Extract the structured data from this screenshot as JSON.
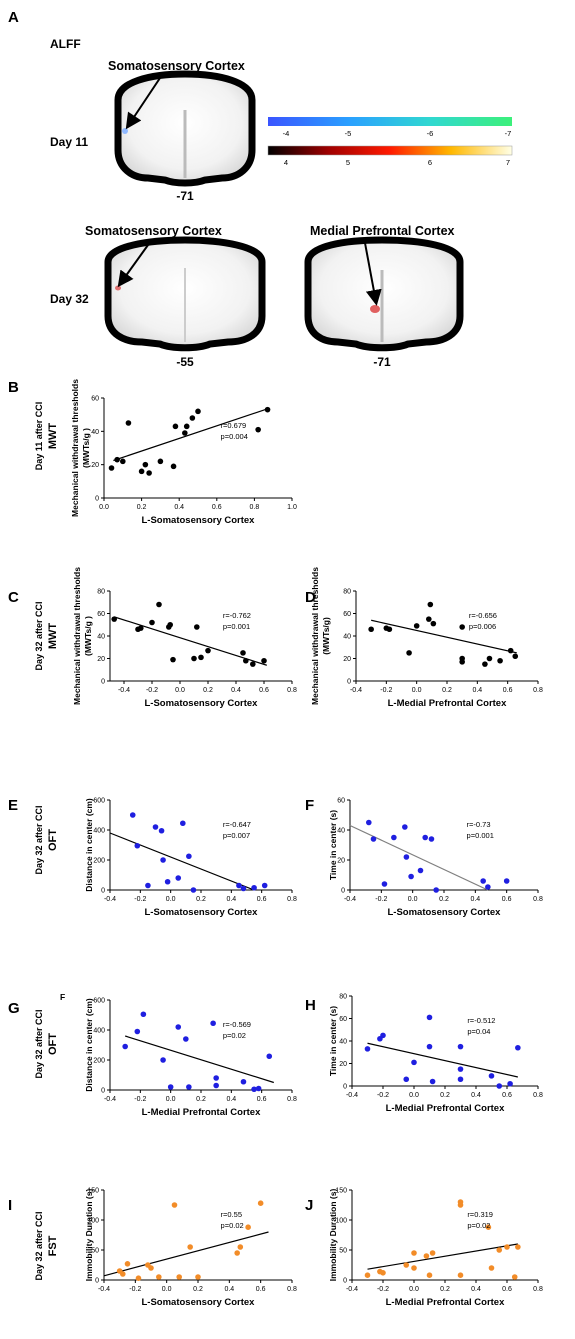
{
  "panel_a": {
    "letter": "A",
    "title": "ALFF",
    "rows": [
      {
        "day": "Day 11",
        "brains": [
          {
            "label": "Somatosensory Cortex",
            "slice": "-71",
            "spot": "blue"
          }
        ]
      },
      {
        "day": "Day 32",
        "brains": [
          {
            "label": "Somatosensory Cortex",
            "slice": "-55",
            "spot": "red"
          },
          {
            "label": "Medial Prefrontal Cortex",
            "slice": "-71",
            "spot": "red"
          }
        ]
      }
    ],
    "colorbar_neg": {
      "ticks": [
        "-4",
        "-5",
        "-6",
        "-7"
      ],
      "colors": [
        "#3a55ff",
        "#2aa0ff",
        "#30d8d0",
        "#3cf07a"
      ]
    },
    "colorbar_pos": {
      "ticks": [
        "4",
        "5",
        "6",
        "7"
      ],
      "colors": [
        "#000000",
        "#a00000",
        "#ff1a00",
        "#ffb800",
        "#ffffe6"
      ]
    }
  },
  "row_labels": [
    {
      "day": "Day 11 after CCI",
      "test": "MWT"
    },
    {
      "day": "Day 32 after CCI",
      "test": "MWT"
    },
    {
      "day": "Day 32 after CCI",
      "test": "OFT"
    },
    {
      "day": "Day 32 after CCI",
      "test": "OFT"
    },
    {
      "day": "Day 32 after CCI",
      "test": "FST"
    }
  ],
  "colors": {
    "black": "#000000",
    "blue": "#1f1fe0",
    "orange": "#f28c28",
    "gray": "#808080"
  },
  "chart_data": [
    {
      "id": "B",
      "letter": "B",
      "type": "scatter",
      "xlabel": "L-Somatosensory Cortex",
      "ylabel": "Mechanical withdrawal thresholds (MWTs/g )",
      "xlim": [
        0.0,
        1.0
      ],
      "ylim": [
        0,
        60
      ],
      "xticks": [
        0.0,
        0.2,
        0.4,
        0.6,
        0.8,
        1.0
      ],
      "yticks": [
        0,
        20,
        40,
        60
      ],
      "r": "r=0.679",
      "p": "p=0.004",
      "color": "black",
      "fit_color": "black",
      "fit": [
        [
          0.05,
          22.5
        ],
        [
          0.87,
          53.5
        ]
      ],
      "points": [
        [
          0.04,
          18
        ],
        [
          0.07,
          23
        ],
        [
          0.1,
          22
        ],
        [
          0.13,
          45
        ],
        [
          0.2,
          16
        ],
        [
          0.22,
          20
        ],
        [
          0.24,
          15
        ],
        [
          0.3,
          22
        ],
        [
          0.37,
          19
        ],
        [
          0.38,
          43
        ],
        [
          0.43,
          39
        ],
        [
          0.44,
          43
        ],
        [
          0.47,
          48
        ],
        [
          0.5,
          52
        ],
        [
          0.82,
          41
        ],
        [
          0.87,
          53
        ]
      ]
    },
    {
      "id": "C",
      "letter": "C",
      "type": "scatter",
      "xlabel": "L-Somatosensory Cortex",
      "ylabel": "Mechanical withdrawal thresholds (MWTs/g )",
      "xlim": [
        -0.5,
        0.8
      ],
      "ylim": [
        0,
        80
      ],
      "xticks": [
        -0.4,
        -0.2,
        0.0,
        0.2,
        0.4,
        0.6,
        0.8
      ],
      "yticks": [
        0,
        20,
        40,
        60,
        80
      ],
      "r": "r=-0.762",
      "p": "p=0.001",
      "color": "black",
      "fit_color": "black",
      "fit": [
        [
          -0.47,
          57
        ],
        [
          0.62,
          14
        ]
      ],
      "points": [
        [
          -0.47,
          55
        ],
        [
          -0.3,
          46
        ],
        [
          -0.28,
          47
        ],
        [
          -0.2,
          52
        ],
        [
          -0.15,
          68
        ],
        [
          -0.08,
          48
        ],
        [
          -0.07,
          50
        ],
        [
          -0.05,
          19
        ],
        [
          0.1,
          20
        ],
        [
          0.12,
          48
        ],
        [
          0.15,
          21
        ],
        [
          0.2,
          27
        ],
        [
          0.45,
          25
        ],
        [
          0.47,
          18
        ],
        [
          0.52,
          15
        ],
        [
          0.6,
          18
        ]
      ]
    },
    {
      "id": "D",
      "letter": "D",
      "type": "scatter",
      "xlabel": "L-Medial Prefrontal Cortex",
      "ylabel": "Mechanical withdrawal thresholds (MWTs/g)",
      "xlim": [
        -0.4,
        0.8
      ],
      "ylim": [
        0,
        80
      ],
      "xticks": [
        -0.4,
        -0.2,
        0.0,
        0.2,
        0.4,
        0.6,
        0.8
      ],
      "yticks": [
        0,
        20,
        40,
        60,
        80
      ],
      "r": "r=-0.656",
      "p": "p=0.006",
      "color": "black",
      "fit_color": "black",
      "fit": [
        [
          -0.3,
          54
        ],
        [
          0.66,
          25
        ]
      ],
      "points": [
        [
          -0.3,
          46
        ],
        [
          -0.2,
          47
        ],
        [
          -0.18,
          46
        ],
        [
          -0.05,
          25
        ],
        [
          0.0,
          49
        ],
        [
          0.08,
          55
        ],
        [
          0.09,
          68
        ],
        [
          0.11,
          51
        ],
        [
          0.3,
          48
        ],
        [
          0.3,
          20
        ],
        [
          0.3,
          17
        ],
        [
          0.45,
          15
        ],
        [
          0.48,
          20
        ],
        [
          0.55,
          18
        ],
        [
          0.62,
          27
        ],
        [
          0.65,
          22
        ]
      ]
    },
    {
      "id": "E",
      "letter": "E",
      "type": "scatter",
      "xlabel": "L-Somatosensory Cortex",
      "ylabel": "Distance  in center (cm)",
      "xlim": [
        -0.4,
        0.8
      ],
      "ylim": [
        0,
        600
      ],
      "xticks": [
        -0.4,
        -0.2,
        0.0,
        0.2,
        0.4,
        0.6,
        0.8
      ],
      "yticks": [
        0,
        200,
        400,
        600
      ],
      "r": "r=-0.647",
      "p": "p=0.007",
      "color": "blue",
      "fit_color": "black",
      "fit": [
        [
          -0.4,
          380
        ],
        [
          0.55,
          0
        ]
      ],
      "points": [
        [
          -0.25,
          500
        ],
        [
          -0.22,
          295
        ],
        [
          -0.15,
          30
        ],
        [
          -0.1,
          420
        ],
        [
          -0.06,
          395
        ],
        [
          -0.05,
          200
        ],
        [
          -0.02,
          55
        ],
        [
          0.05,
          80
        ],
        [
          0.08,
          445
        ],
        [
          0.12,
          225
        ],
        [
          0.15,
          0
        ],
        [
          0.45,
          30
        ],
        [
          0.48,
          10
        ],
        [
          0.55,
          15
        ],
        [
          0.62,
          30
        ]
      ]
    },
    {
      "id": "F",
      "letter": "F",
      "type": "scatter",
      "xlabel": "L-Somatosensory Cortex",
      "ylabel": "Time  in center (s)",
      "xlim": [
        -0.4,
        0.8
      ],
      "ylim": [
        0,
        60
      ],
      "xticks": [
        -0.4,
        -0.2,
        0.0,
        0.2,
        0.4,
        0.6,
        0.8
      ],
      "yticks": [
        0,
        20,
        40,
        60
      ],
      "r": "r=-0.73",
      "p": "p=0.001",
      "color": "blue",
      "fit_color": "gray",
      "fit": [
        [
          -0.4,
          43
        ],
        [
          0.48,
          0
        ]
      ],
      "points": [
        [
          -0.28,
          45
        ],
        [
          -0.25,
          34
        ],
        [
          -0.18,
          4
        ],
        [
          -0.12,
          35
        ],
        [
          -0.05,
          42
        ],
        [
          -0.04,
          22
        ],
        [
          -0.01,
          9
        ],
        [
          0.05,
          13
        ],
        [
          0.08,
          35
        ],
        [
          0.12,
          34
        ],
        [
          0.15,
          0
        ],
        [
          0.45,
          6
        ],
        [
          0.48,
          2
        ],
        [
          0.6,
          6
        ]
      ]
    },
    {
      "id": "G",
      "letter": "G",
      "sub_letter": "F",
      "type": "scatter",
      "xlabel": "L-Medial Prefrontal Cortex",
      "ylabel": "Distance  in center (cm)",
      "xlim": [
        -0.4,
        0.8
      ],
      "ylim": [
        0,
        600
      ],
      "xticks": [
        -0.4,
        -0.2,
        0.0,
        0.2,
        0.4,
        0.6,
        0.8
      ],
      "yticks": [
        0,
        200,
        400,
        600
      ],
      "r": "r=-0.569",
      "p": "p=0.02",
      "color": "blue",
      "fit_color": "black",
      "fit": [
        [
          -0.3,
          360
        ],
        [
          0.68,
          50
        ]
      ],
      "points": [
        [
          -0.3,
          290
        ],
        [
          -0.22,
          390
        ],
        [
          -0.18,
          505
        ],
        [
          -0.05,
          200
        ],
        [
          0.05,
          420
        ],
        [
          0.1,
          340
        ],
        [
          0.12,
          20
        ],
        [
          0.0,
          20
        ],
        [
          0.28,
          445
        ],
        [
          0.3,
          80
        ],
        [
          0.3,
          30
        ],
        [
          0.48,
          55
        ],
        [
          0.55,
          5
        ],
        [
          0.58,
          10
        ],
        [
          0.65,
          225
        ]
      ]
    },
    {
      "id": "H",
      "letter": "H",
      "type": "scatter",
      "xlabel": "L-Medial Prefrontal Cortex",
      "ylabel": "Time  in center (s)",
      "xlim": [
        -0.4,
        0.8
      ],
      "ylim": [
        0,
        80
      ],
      "xticks": [
        -0.4,
        -0.2,
        0.0,
        0.2,
        0.4,
        0.6,
        0.8
      ],
      "yticks": [
        0,
        20,
        40,
        60,
        80
      ],
      "r": "r=-0.512",
      "p": "p=0.04",
      "color": "blue",
      "fit_color": "black",
      "fit": [
        [
          -0.3,
          38
        ],
        [
          0.67,
          8
        ]
      ],
      "points": [
        [
          -0.3,
          33
        ],
        [
          -0.22,
          42
        ],
        [
          -0.2,
          45
        ],
        [
          -0.05,
          6
        ],
        [
          0.0,
          21
        ],
        [
          0.1,
          35
        ],
        [
          0.1,
          61
        ],
        [
          0.12,
          4
        ],
        [
          0.3,
          35
        ],
        [
          0.3,
          15
        ],
        [
          0.3,
          6
        ],
        [
          0.5,
          9
        ],
        [
          0.55,
          0
        ],
        [
          0.62,
          2
        ],
        [
          0.67,
          34
        ]
      ]
    },
    {
      "id": "I",
      "letter": "I",
      "type": "scatter",
      "xlabel": "L-Somatosensory Cortex",
      "ylabel": "Immobility Duration (s)",
      "xlim": [
        -0.4,
        0.8
      ],
      "ylim": [
        0,
        150
      ],
      "xticks": [
        -0.4,
        -0.2,
        0.0,
        0.2,
        0.4,
        0.6,
        0.8
      ],
      "yticks": [
        0,
        50,
        100,
        150
      ],
      "r": "r=0.55",
      "p": "p=0.02",
      "color": "orange",
      "fit_color": "black",
      "fit": [
        [
          -0.4,
          7
        ],
        [
          0.65,
          80
        ]
      ],
      "points": [
        [
          -0.3,
          15
        ],
        [
          -0.28,
          10
        ],
        [
          -0.25,
          27
        ],
        [
          -0.18,
          3
        ],
        [
          -0.12,
          25
        ],
        [
          -0.1,
          20
        ],
        [
          -0.05,
          5
        ],
        [
          0.05,
          125
        ],
        [
          0.08,
          5
        ],
        [
          0.15,
          55
        ],
        [
          0.2,
          5
        ],
        [
          0.45,
          45
        ],
        [
          0.47,
          55
        ],
        [
          0.52,
          88
        ],
        [
          0.6,
          128
        ]
      ]
    },
    {
      "id": "J",
      "letter": "J",
      "type": "scatter",
      "xlabel": "L-Medial Prefrontal Cortex",
      "ylabel": "Immobility Duration (s)",
      "xlim": [
        -0.4,
        0.8
      ],
      "ylim": [
        0,
        150
      ],
      "xticks": [
        -0.4,
        -0.2,
        0.0,
        0.2,
        0.4,
        0.6,
        0.8
      ],
      "yticks": [
        0,
        50,
        100,
        150
      ],
      "r": "r=0.319",
      "p": "p=0.02",
      "color": "orange",
      "fit_color": "black",
      "fit": [
        [
          -0.3,
          18
        ],
        [
          0.67,
          60
        ]
      ],
      "points": [
        [
          -0.3,
          8
        ],
        [
          -0.22,
          14
        ],
        [
          -0.2,
          12
        ],
        [
          -0.05,
          25
        ],
        [
          0.0,
          45
        ],
        [
          0.0,
          20
        ],
        [
          0.08,
          40
        ],
        [
          0.1,
          8
        ],
        [
          0.12,
          45
        ],
        [
          0.3,
          125
        ],
        [
          0.3,
          130
        ],
        [
          0.3,
          8
        ],
        [
          0.48,
          88
        ],
        [
          0.5,
          20
        ],
        [
          0.55,
          50
        ],
        [
          0.6,
          55
        ],
        [
          0.65,
          5
        ],
        [
          0.67,
          55
        ]
      ]
    }
  ]
}
